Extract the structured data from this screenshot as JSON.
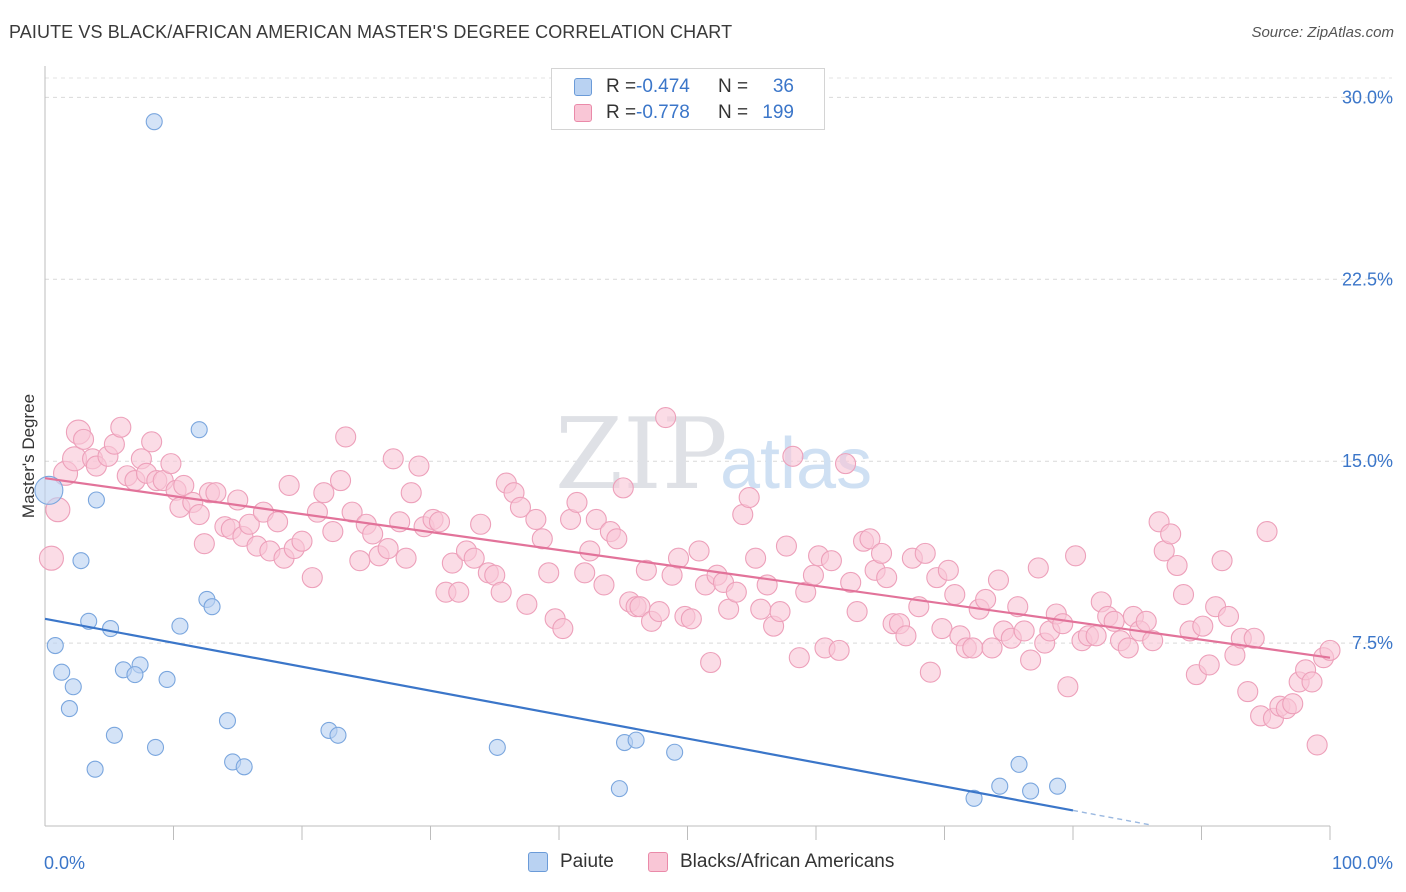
{
  "title": "PAIUTE VS BLACK/AFRICAN AMERICAN MASTER'S DEGREE CORRELATION CHART",
  "source": "Source: ZipAtlas.com",
  "watermark": {
    "zip": "ZIP",
    "atlas": "atlas"
  },
  "legend": {
    "rows": [
      {
        "r_label": "R =",
        "r_value": "-0.474",
        "n_label": "N =",
        "n_value": "36",
        "fill": "#b9d2f2",
        "stroke": "#6b9bd8"
      },
      {
        "r_label": "R =",
        "r_value": "-0.778",
        "n_label": "N =",
        "n_value": "199",
        "fill": "#f9c6d6",
        "stroke": "#ea8aa9"
      }
    ]
  },
  "bottom_legend": [
    {
      "label": "Paiute",
      "fill": "#b9d2f2",
      "stroke": "#6b9bd8"
    },
    {
      "label": "Blacks/African Americans",
      "fill": "#f9c6d6",
      "stroke": "#ea8aa9"
    }
  ],
  "chart_data": {
    "type": "scatter",
    "title": "PAIUTE VS BLACK/AFRICAN AMERICAN MASTER'S DEGREE CORRELATION CHART",
    "xlabel": "",
    "ylabel": "Master's Degree",
    "xlim": [
      0,
      100
    ],
    "ylim": [
      0,
      30.8
    ],
    "x_tick_labels": [
      "0.0%",
      "100.0%"
    ],
    "y_ticks": [
      7.5,
      15.0,
      22.5,
      30.0
    ],
    "y_tick_labels": [
      "7.5%",
      "15.0%",
      "22.5%",
      "30.0%"
    ],
    "grid": "horizontal dashed",
    "legend_position": "top-center",
    "colors": {
      "paiute": "#3b76c9",
      "black": "#e2739a",
      "paiute_fill": "#b9d2f2",
      "black_fill": "#f9c6d6"
    },
    "series": [
      {
        "name": "Paiute",
        "trend": {
          "x0": 0,
          "y0": 8.5,
          "x1": 80,
          "y1": 0.6,
          "dashed_to": 86
        },
        "points": [
          [
            0.3,
            13.8,
            14
          ],
          [
            8.5,
            29.0,
            8
          ],
          [
            4.0,
            13.4,
            8
          ],
          [
            12.0,
            16.3,
            8
          ],
          [
            2.8,
            10.9,
            8
          ],
          [
            12.6,
            9.3,
            8
          ],
          [
            13.0,
            9.0,
            8
          ],
          [
            3.4,
            8.4,
            8
          ],
          [
            5.1,
            8.1,
            8
          ],
          [
            10.5,
            8.2,
            8
          ],
          [
            0.8,
            7.4,
            8
          ],
          [
            1.3,
            6.3,
            8
          ],
          [
            6.1,
            6.4,
            8
          ],
          [
            7.4,
            6.6,
            8
          ],
          [
            7.0,
            6.2,
            8
          ],
          [
            9.5,
            6.0,
            8
          ],
          [
            2.2,
            5.7,
            8
          ],
          [
            1.9,
            4.8,
            8
          ],
          [
            14.2,
            4.3,
            8
          ],
          [
            5.4,
            3.7,
            8
          ],
          [
            22.1,
            3.9,
            8
          ],
          [
            22.8,
            3.7,
            8
          ],
          [
            8.6,
            3.2,
            8
          ],
          [
            35.2,
            3.2,
            8
          ],
          [
            45.1,
            3.4,
            8
          ],
          [
            46.0,
            3.5,
            8
          ],
          [
            49.0,
            3.0,
            8
          ],
          [
            14.6,
            2.6,
            8
          ],
          [
            15.5,
            2.4,
            8
          ],
          [
            3.9,
            2.3,
            8
          ],
          [
            75.8,
            2.5,
            8
          ],
          [
            44.7,
            1.5,
            8
          ],
          [
            74.3,
            1.6,
            8
          ],
          [
            76.7,
            1.4,
            8
          ],
          [
            78.8,
            1.6,
            8
          ],
          [
            72.3,
            1.1,
            8
          ]
        ]
      },
      {
        "name": "Blacks/African Americans",
        "trend": {
          "x0": 0,
          "y0": 14.3,
          "x1": 100,
          "y1": 6.9
        },
        "points": [
          [
            0.5,
            11.0,
            12
          ],
          [
            1.0,
            13.0,
            12
          ],
          [
            1.6,
            14.5,
            12
          ],
          [
            2.3,
            15.1,
            12
          ],
          [
            2.6,
            16.2,
            12
          ],
          [
            3.0,
            15.9,
            10
          ],
          [
            3.7,
            15.1,
            10
          ],
          [
            4.0,
            14.8,
            10
          ],
          [
            4.9,
            15.2,
            10
          ],
          [
            5.4,
            15.7,
            10
          ],
          [
            5.9,
            16.4,
            10
          ],
          [
            6.4,
            14.4,
            10
          ],
          [
            7.0,
            14.2,
            10
          ],
          [
            7.5,
            15.1,
            10
          ],
          [
            7.9,
            14.5,
            10
          ],
          [
            8.3,
            15.8,
            10
          ],
          [
            8.7,
            14.2,
            10
          ],
          [
            9.2,
            14.2,
            10
          ],
          [
            9.8,
            14.9,
            10
          ],
          [
            10.2,
            13.8,
            10
          ],
          [
            10.5,
            13.1,
            10
          ],
          [
            10.8,
            14.0,
            10
          ],
          [
            11.5,
            13.3,
            10
          ],
          [
            12.0,
            12.8,
            10
          ],
          [
            12.4,
            11.6,
            10
          ],
          [
            12.8,
            13.7,
            10
          ],
          [
            13.3,
            13.7,
            10
          ],
          [
            14.0,
            12.3,
            10
          ],
          [
            14.5,
            12.2,
            10
          ],
          [
            15.0,
            13.4,
            10
          ],
          [
            15.4,
            11.9,
            10
          ],
          [
            15.9,
            12.4,
            10
          ],
          [
            16.5,
            11.5,
            10
          ],
          [
            17.0,
            12.9,
            10
          ],
          [
            17.5,
            11.3,
            10
          ],
          [
            18.1,
            12.5,
            10
          ],
          [
            18.6,
            11.0,
            10
          ],
          [
            19.0,
            14.0,
            10
          ],
          [
            19.4,
            11.4,
            10
          ],
          [
            20.0,
            11.7,
            10
          ],
          [
            20.8,
            10.2,
            10
          ],
          [
            21.2,
            12.9,
            10
          ],
          [
            21.7,
            13.7,
            10
          ],
          [
            22.4,
            12.1,
            10
          ],
          [
            23.0,
            14.2,
            10
          ],
          [
            23.4,
            16.0,
            10
          ],
          [
            23.9,
            12.9,
            10
          ],
          [
            24.5,
            10.9,
            10
          ],
          [
            25.0,
            12.4,
            10
          ],
          [
            25.5,
            12.0,
            10
          ],
          [
            26.0,
            11.1,
            10
          ],
          [
            26.7,
            11.4,
            10
          ],
          [
            27.1,
            15.1,
            10
          ],
          [
            27.6,
            12.5,
            10
          ],
          [
            28.1,
            11.0,
            10
          ],
          [
            28.5,
            13.7,
            10
          ],
          [
            29.1,
            14.8,
            10
          ],
          [
            29.5,
            12.3,
            10
          ],
          [
            30.2,
            12.6,
            10
          ],
          [
            30.7,
            12.5,
            10
          ],
          [
            31.2,
            9.6,
            10
          ],
          [
            31.7,
            10.8,
            10
          ],
          [
            32.2,
            9.6,
            10
          ],
          [
            32.8,
            11.3,
            10
          ],
          [
            33.4,
            11.0,
            10
          ],
          [
            33.9,
            12.4,
            10
          ],
          [
            34.5,
            10.4,
            10
          ],
          [
            35.0,
            10.3,
            10
          ],
          [
            35.5,
            9.6,
            10
          ],
          [
            35.9,
            14.1,
            10
          ],
          [
            36.5,
            13.7,
            10
          ],
          [
            37.0,
            13.1,
            10
          ],
          [
            37.5,
            9.1,
            10
          ],
          [
            38.2,
            12.6,
            10
          ],
          [
            38.7,
            11.8,
            10
          ],
          [
            39.2,
            10.4,
            10
          ],
          [
            39.7,
            8.5,
            10
          ],
          [
            40.3,
            8.1,
            10
          ],
          [
            40.9,
            12.6,
            10
          ],
          [
            41.4,
            13.3,
            10
          ],
          [
            42.0,
            10.4,
            10
          ],
          [
            42.4,
            11.3,
            10
          ],
          [
            42.9,
            12.6,
            10
          ],
          [
            43.5,
            9.9,
            10
          ],
          [
            44.0,
            12.1,
            10
          ],
          [
            44.5,
            11.8,
            10
          ],
          [
            45.0,
            13.9,
            10
          ],
          [
            45.5,
            9.2,
            10
          ],
          [
            46.0,
            9.0,
            10
          ],
          [
            46.3,
            9.0,
            10
          ],
          [
            46.8,
            10.5,
            10
          ],
          [
            47.2,
            8.4,
            10
          ],
          [
            47.8,
            8.8,
            10
          ],
          [
            48.3,
            16.8,
            10
          ],
          [
            48.8,
            10.3,
            10
          ],
          [
            49.3,
            11.0,
            10
          ],
          [
            49.8,
            8.6,
            10
          ],
          [
            50.3,
            8.5,
            10
          ],
          [
            50.9,
            11.3,
            10
          ],
          [
            51.4,
            9.9,
            10
          ],
          [
            51.8,
            6.7,
            10
          ],
          [
            52.3,
            10.3,
            10
          ],
          [
            52.8,
            10.0,
            10
          ],
          [
            53.2,
            8.9,
            10
          ],
          [
            53.8,
            9.6,
            10
          ],
          [
            54.3,
            12.8,
            10
          ],
          [
            54.8,
            13.5,
            10
          ],
          [
            55.3,
            11.0,
            10
          ],
          [
            55.7,
            8.9,
            10
          ],
          [
            56.2,
            9.9,
            10
          ],
          [
            56.7,
            8.2,
            10
          ],
          [
            57.2,
            8.8,
            10
          ],
          [
            57.7,
            11.5,
            10
          ],
          [
            58.2,
            15.2,
            10
          ],
          [
            58.7,
            6.9,
            10
          ],
          [
            59.2,
            9.6,
            10
          ],
          [
            59.8,
            10.3,
            10
          ],
          [
            60.2,
            11.1,
            10
          ],
          [
            60.7,
            7.3,
            10
          ],
          [
            61.2,
            10.9,
            10
          ],
          [
            61.8,
            7.2,
            10
          ],
          [
            62.3,
            14.9,
            10
          ],
          [
            62.7,
            10.0,
            10
          ],
          [
            63.2,
            8.8,
            10
          ],
          [
            63.7,
            11.7,
            10
          ],
          [
            64.2,
            11.8,
            10
          ],
          [
            64.6,
            10.5,
            10
          ],
          [
            65.1,
            11.2,
            10
          ],
          [
            65.5,
            10.2,
            10
          ],
          [
            66.0,
            8.3,
            10
          ],
          [
            66.5,
            8.3,
            10
          ],
          [
            67.0,
            7.8,
            10
          ],
          [
            67.5,
            11.0,
            10
          ],
          [
            68.0,
            9.0,
            10
          ],
          [
            68.5,
            11.2,
            10
          ],
          [
            68.9,
            6.3,
            10
          ],
          [
            69.4,
            10.2,
            10
          ],
          [
            69.8,
            8.1,
            10
          ],
          [
            70.3,
            10.5,
            10
          ],
          [
            70.8,
            9.5,
            10
          ],
          [
            71.2,
            7.8,
            10
          ],
          [
            71.7,
            7.3,
            10
          ],
          [
            72.2,
            7.3,
            10
          ],
          [
            72.7,
            8.9,
            10
          ],
          [
            73.2,
            9.3,
            10
          ],
          [
            73.7,
            7.3,
            10
          ],
          [
            74.2,
            10.1,
            10
          ],
          [
            74.6,
            8.0,
            10
          ],
          [
            75.2,
            7.7,
            10
          ],
          [
            75.7,
            9.0,
            10
          ],
          [
            76.2,
            8.0,
            10
          ],
          [
            76.7,
            6.8,
            10
          ],
          [
            77.3,
            10.6,
            10
          ],
          [
            77.8,
            7.5,
            10
          ],
          [
            78.2,
            8.0,
            10
          ],
          [
            78.7,
            8.7,
            10
          ],
          [
            79.2,
            8.3,
            10
          ],
          [
            79.6,
            5.7,
            10
          ],
          [
            80.2,
            11.1,
            10
          ],
          [
            80.7,
            7.6,
            10
          ],
          [
            81.2,
            7.8,
            10
          ],
          [
            81.8,
            7.8,
            10
          ],
          [
            82.2,
            9.2,
            10
          ],
          [
            82.7,
            8.6,
            10
          ],
          [
            83.2,
            8.4,
            10
          ],
          [
            83.7,
            7.6,
            10
          ],
          [
            84.3,
            7.3,
            10
          ],
          [
            84.7,
            8.6,
            10
          ],
          [
            85.2,
            8.0,
            10
          ],
          [
            85.7,
            8.4,
            10
          ],
          [
            86.2,
            7.6,
            10
          ],
          [
            86.7,
            12.5,
            10
          ],
          [
            87.1,
            11.3,
            10
          ],
          [
            87.6,
            12.0,
            10
          ],
          [
            88.1,
            10.7,
            10
          ],
          [
            88.6,
            9.5,
            10
          ],
          [
            89.1,
            8.0,
            10
          ],
          [
            89.6,
            6.2,
            10
          ],
          [
            90.1,
            8.2,
            10
          ],
          [
            90.6,
            6.6,
            10
          ],
          [
            91.1,
            9.0,
            10
          ],
          [
            91.6,
            10.9,
            10
          ],
          [
            92.1,
            8.6,
            10
          ],
          [
            92.6,
            7.0,
            10
          ],
          [
            93.1,
            7.7,
            10
          ],
          [
            93.6,
            5.5,
            10
          ],
          [
            94.1,
            7.7,
            10
          ],
          [
            94.6,
            4.5,
            10
          ],
          [
            95.1,
            12.1,
            10
          ],
          [
            95.6,
            4.4,
            10
          ],
          [
            96.1,
            4.9,
            10
          ],
          [
            96.6,
            4.8,
            10
          ],
          [
            97.1,
            5.0,
            10
          ],
          [
            97.6,
            5.9,
            10
          ],
          [
            98.1,
            6.4,
            10
          ],
          [
            98.6,
            5.9,
            10
          ],
          [
            99.0,
            3.3,
            10
          ],
          [
            99.5,
            6.9,
            10
          ],
          [
            100.0,
            7.2,
            10
          ]
        ]
      }
    ]
  }
}
